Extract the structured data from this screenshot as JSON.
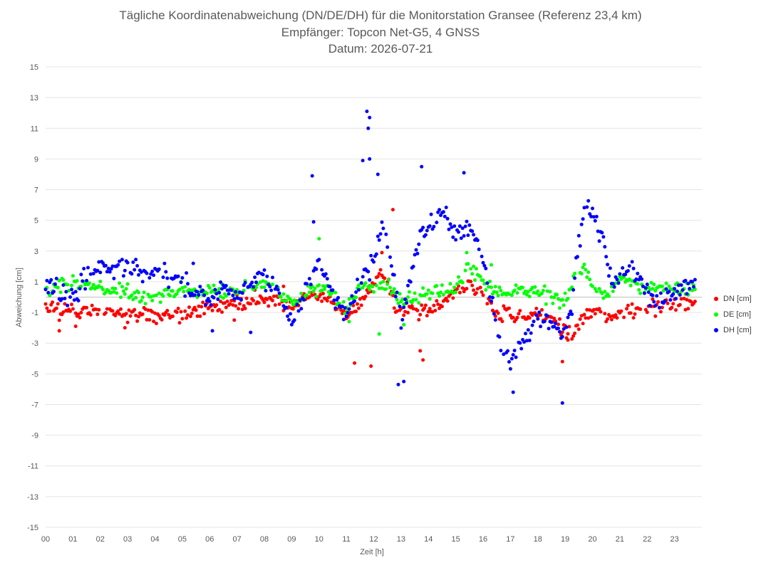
{
  "chart_data": {
    "type": "scatter",
    "title": "Tägliche Koordinatenabweichung (DN/DE/DH) für die Monitorstation Gransee (Referenz 23,4 km)",
    "subtitle": "Empfänger: Topcon Net-G5, 4 GNSS",
    "date_line": "Datum: 2026-07-21",
    "xlabel": "Zeit [h]",
    "ylabel": "Abweichung [cm]",
    "xlim": [
      0,
      24
    ],
    "ylim": [
      -15,
      15
    ],
    "x_ticks": [
      "00",
      "01",
      "02",
      "03",
      "04",
      "05",
      "06",
      "07",
      "08",
      "09",
      "10",
      "11",
      "12",
      "13",
      "14",
      "15",
      "16",
      "17",
      "18",
      "19",
      "20",
      "21",
      "22",
      "23"
    ],
    "y_ticks": [
      "15",
      "13",
      "11",
      "9",
      "7",
      "5",
      "3",
      "1",
      "-1",
      "-3",
      "-5",
      "-7",
      "-9",
      "-11",
      "-13",
      "-15"
    ],
    "grid": "horizontal",
    "legend_position": "right",
    "series": [
      {
        "name": "DN [cm]",
        "color": "#ff0000",
        "anchors": [
          [
            0,
            -0.7
          ],
          [
            1,
            -0.9
          ],
          [
            2,
            -0.8
          ],
          [
            3,
            -1.1
          ],
          [
            4,
            -1.2
          ],
          [
            5,
            -1.2
          ],
          [
            6,
            -0.6
          ],
          [
            7,
            -0.4
          ],
          [
            8,
            -0.2
          ],
          [
            9,
            -0.4
          ],
          [
            10,
            0.2
          ],
          [
            11,
            -1.2
          ],
          [
            11.8,
            0.3
          ],
          [
            12.3,
            1.8
          ],
          [
            12.8,
            -0.6
          ],
          [
            13.5,
            -0.9
          ],
          [
            14,
            -1.0
          ],
          [
            15,
            0.3
          ],
          [
            15.5,
            0.8
          ],
          [
            16,
            0.4
          ],
          [
            16.5,
            -1.0
          ],
          [
            17,
            -1.2
          ],
          [
            17.5,
            -1.2
          ],
          [
            18,
            -1.0
          ],
          [
            18.5,
            -1.4
          ],
          [
            19,
            -2.2
          ],
          [
            19.3,
            -2.6
          ],
          [
            19.6,
            -1.3
          ],
          [
            20,
            -0.9
          ],
          [
            20.5,
            -1.1
          ],
          [
            21,
            -1.2
          ],
          [
            22,
            -0.7
          ],
          [
            23,
            -0.4
          ],
          [
            23.7,
            -0.3
          ]
        ],
        "noise": 0.45,
        "outliers": [
          [
            11.3,
            -4.3
          ],
          [
            11.9,
            -4.5
          ],
          [
            12.3,
            2.9
          ],
          [
            12.7,
            5.7
          ],
          [
            13.8,
            -4.1
          ],
          [
            13.7,
            -3.5
          ],
          [
            18.9,
            -4.2
          ],
          [
            19.1,
            -2.8
          ],
          [
            0.5,
            -2.2
          ],
          [
            1.1,
            -1.9
          ],
          [
            2.9,
            -2.0
          ],
          [
            6.9,
            -1.5
          ],
          [
            8.7,
            0.7
          ]
        ]
      },
      {
        "name": "DE [cm]",
        "color": "#00ff00",
        "anchors": [
          [
            0,
            0.4
          ],
          [
            0.5,
            0.8
          ],
          [
            1,
            0.9
          ],
          [
            1.5,
            0.7
          ],
          [
            2,
            0.6
          ],
          [
            3,
            0.3
          ],
          [
            4,
            -0.1
          ],
          [
            5,
            0.6
          ],
          [
            6,
            0.4
          ],
          [
            7,
            0.4
          ],
          [
            8,
            0.9
          ],
          [
            9,
            -0.4
          ],
          [
            9.5,
            0.1
          ],
          [
            10,
            0.7
          ],
          [
            10.5,
            0.3
          ],
          [
            11,
            -0.9
          ],
          [
            11.5,
            0.7
          ],
          [
            12,
            0.6
          ],
          [
            12.5,
            0.9
          ],
          [
            13,
            -0.4
          ],
          [
            13.5,
            0.1
          ],
          [
            14,
            0.3
          ],
          [
            15,
            0.6
          ],
          [
            15.5,
            2.0
          ],
          [
            16,
            1.0
          ],
          [
            16.5,
            0.2
          ],
          [
            17,
            0.5
          ],
          [
            17.5,
            0.3
          ],
          [
            18,
            0.2
          ],
          [
            18.5,
            0.0
          ],
          [
            19,
            -0.3
          ],
          [
            19.4,
            1.5
          ],
          [
            19.7,
            2.1
          ],
          [
            20,
            0.5
          ],
          [
            20.5,
            0.1
          ],
          [
            21,
            1.3
          ],
          [
            22,
            0.5
          ],
          [
            23,
            0.6
          ],
          [
            23.7,
            0.5
          ]
        ],
        "noise": 0.4,
        "outliers": [
          [
            10,
            3.8
          ],
          [
            12.2,
            -2.4
          ],
          [
            13.1,
            -1.8
          ],
          [
            15.4,
            2.9
          ],
          [
            11.1,
            -1.6
          ],
          [
            16.3,
            2.1
          ]
        ]
      },
      {
        "name": "DH [cm]",
        "color": "#0000ff",
        "anchors": [
          [
            0,
            1.0
          ],
          [
            0.3,
            0.6
          ],
          [
            0.6,
            -0.1
          ],
          [
            1,
            -0.2
          ],
          [
            1.5,
            1.3
          ],
          [
            2,
            1.8
          ],
          [
            2.5,
            1.7
          ],
          [
            3,
            2.1
          ],
          [
            3.5,
            1.6
          ],
          [
            4,
            1.8
          ],
          [
            4.5,
            1.3
          ],
          [
            5,
            0.9
          ],
          [
            5.5,
            0.6
          ],
          [
            6,
            -0.2
          ],
          [
            6.5,
            0.3
          ],
          [
            7,
            0.1
          ],
          [
            7.5,
            1.2
          ],
          [
            8,
            1.3
          ],
          [
            8.5,
            0.0
          ],
          [
            9,
            -1.7
          ],
          [
            9.5,
            0.2
          ],
          [
            10,
            2.5
          ],
          [
            10.5,
            0.3
          ],
          [
            11,
            -1.3
          ],
          [
            11.5,
            1.0
          ],
          [
            12,
            2.2
          ],
          [
            12.3,
            4.8
          ],
          [
            12.6,
            2.8
          ],
          [
            13,
            -1.8
          ],
          [
            13.3,
            0.8
          ],
          [
            13.7,
            4.2
          ],
          [
            14,
            4.8
          ],
          [
            14.5,
            5.5
          ],
          [
            15,
            4.2
          ],
          [
            15.5,
            4.6
          ],
          [
            16,
            2.5
          ],
          [
            16.3,
            -0.3
          ],
          [
            16.7,
            -3.5
          ],
          [
            17,
            -4.2
          ],
          [
            17.5,
            -3.0
          ],
          [
            18,
            -1.2
          ],
          [
            18.5,
            -1.8
          ],
          [
            19,
            -2.5
          ],
          [
            19.2,
            -1.0
          ],
          [
            19.5,
            3.3
          ],
          [
            19.8,
            6.2
          ],
          [
            20.1,
            5.3
          ],
          [
            20.4,
            3.3
          ],
          [
            20.7,
            1.0
          ],
          [
            21,
            1.6
          ],
          [
            21.5,
            1.8
          ],
          [
            22,
            0.2
          ],
          [
            22.5,
            0.0
          ],
          [
            23,
            0.5
          ],
          [
            23.7,
            0.8
          ]
        ],
        "noise": 0.65,
        "outliers": [
          [
            9.75,
            7.9
          ],
          [
            9.8,
            4.9
          ],
          [
            11.75,
            12.1
          ],
          [
            11.8,
            11.0
          ],
          [
            11.85,
            11.7
          ],
          [
            11.6,
            8.9
          ],
          [
            11.85,
            9.0
          ],
          [
            12.15,
            8.0
          ],
          [
            13.75,
            8.5
          ],
          [
            15.3,
            8.1
          ],
          [
            12.9,
            -5.7
          ],
          [
            13.1,
            -5.5
          ],
          [
            17.1,
            -6.2
          ],
          [
            18.9,
            -6.9
          ],
          [
            5.4,
            2.2
          ],
          [
            6.1,
            -2.2
          ],
          [
            7.5,
            -2.3
          ]
        ]
      }
    ]
  }
}
